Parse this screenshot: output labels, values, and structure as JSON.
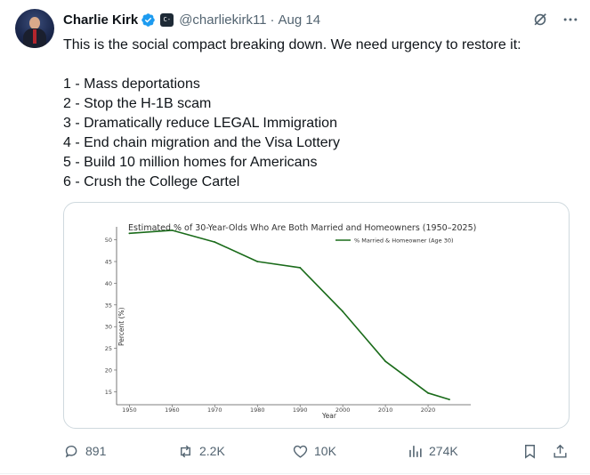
{
  "author": {
    "name": "Charlie Kirk",
    "handle": "@charliekirk11",
    "separator": "·",
    "date": "Aug 14"
  },
  "tweet": {
    "intro": "This is the social compact breaking down. We need urgency to restore it:",
    "points": [
      "1 - Mass deportations",
      "2 - Stop the H-1B scam",
      "3 - Dramatically reduce LEGAL Immigration",
      "4 - End chain migration and the Visa Lottery",
      "5 - Build 10 million homes for Americans",
      "6 - Crush the College Cartel"
    ]
  },
  "chart_data": {
    "type": "line",
    "title": "Estimated % of 30-Year-Olds Who Are Both Married and Homeowners (1950–2025)",
    "xlabel": "Year",
    "ylabel": "Percent (%)",
    "xlim": [
      1947,
      2030
    ],
    "ylim": [
      12,
      53
    ],
    "xticks": [
      1950,
      1960,
      1970,
      1980,
      1990,
      2000,
      2010,
      2020
    ],
    "yticks": [
      15,
      20,
      25,
      30,
      35,
      40,
      45,
      50
    ],
    "legend_position": "top-right",
    "series": [
      {
        "name": "% Married & Homeowner (Age 30)",
        "color": "#1a6b1a",
        "x": [
          1950,
          1960,
          1970,
          1980,
          1990,
          2000,
          2010,
          2020,
          2025
        ],
        "y": [
          51.5,
          52.2,
          49.5,
          45.0,
          43.6,
          33.5,
          22.0,
          14.7,
          13.2
        ]
      }
    ]
  },
  "actions": {
    "replies": "891",
    "reposts": "2.2K",
    "likes": "10K",
    "views": "274K"
  },
  "icons": {
    "verified": "verified-badge-icon",
    "affiliate": "affiliate-badge-icon",
    "grok": "grok-icon",
    "more": "more-icon",
    "reply": "reply-icon",
    "repost": "repost-icon",
    "like": "heart-icon",
    "views": "views-icon",
    "bookmark": "bookmark-icon",
    "share": "share-icon"
  },
  "colors": {
    "verified_blue": "#1d9bf0",
    "muted_text": "#536471",
    "series_green": "#1a6b1a"
  }
}
